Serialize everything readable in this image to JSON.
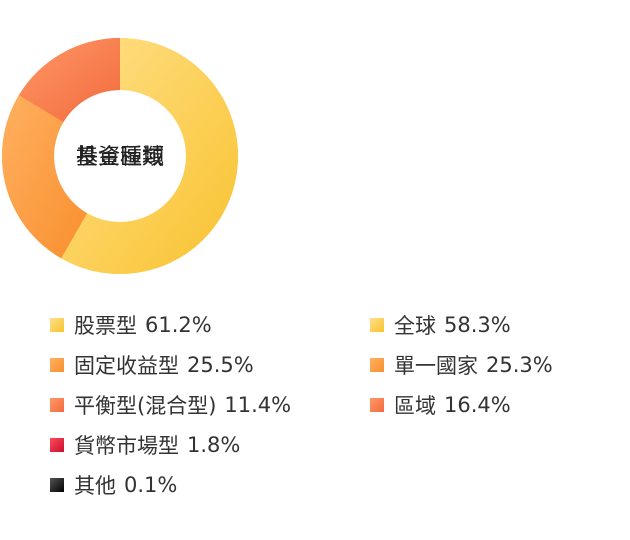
{
  "chart_data": [
    {
      "type": "pie",
      "subtype": "donut",
      "center_label": "基金種類",
      "slices": [
        {
          "label": "股票型",
          "value": 61.2,
          "value_text": "61.2%",
          "colors": [
            "#ffe08a",
            "#f9c22e"
          ]
        },
        {
          "label": "固定收益型",
          "value": 25.5,
          "value_text": "25.5%",
          "colors": [
            "#ffb060",
            "#f98f2e"
          ]
        },
        {
          "label": "平衡型(混合型)",
          "value": 11.4,
          "value_text": "11.4%",
          "colors": [
            "#ff9868",
            "#f26a3c"
          ]
        },
        {
          "label": "貨幣市場型",
          "value": 1.8,
          "value_text": "1.8%",
          "colors": [
            "#ff4a5a",
            "#c8102e"
          ]
        },
        {
          "label": "其他",
          "value": 0.1,
          "value_text": "0.1%",
          "colors": [
            "#555555",
            "#000000"
          ]
        }
      ]
    },
    {
      "type": "pie",
      "subtype": "donut",
      "center_label": "投資區域",
      "slices": [
        {
          "label": "全球",
          "value": 58.3,
          "value_text": "58.3%",
          "colors": [
            "#ffe08a",
            "#f9c22e"
          ]
        },
        {
          "label": "單一國家",
          "value": 25.3,
          "value_text": "25.3%",
          "colors": [
            "#ffb060",
            "#f98f2e"
          ]
        },
        {
          "label": "區域",
          "value": 16.4,
          "value_text": "16.4%",
          "colors": [
            "#ff9868",
            "#f26a3c"
          ]
        }
      ]
    }
  ]
}
